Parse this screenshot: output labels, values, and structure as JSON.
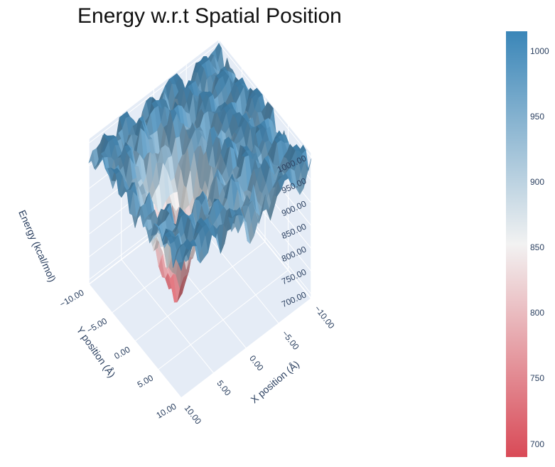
{
  "chart_data": {
    "type": "surface",
    "title": "Energy w.r.t Spatial Position",
    "xlabel": "X position (Å)",
    "ylabel": "Y position (Å)",
    "zlabel": "Energy (kcal/mol)",
    "x_ticks": [
      "−10.00",
      "−5.00",
      "0.00",
      "5.00",
      "10.00"
    ],
    "y_ticks": [
      "−10.00",
      "−5.00",
      "0.00",
      "5.00",
      "10.00"
    ],
    "z_ticks": [
      "700.00",
      "750.00",
      "800.00",
      "850.00",
      "900.00",
      "950.00",
      "1000.00"
    ],
    "xlim": [
      -10,
      10
    ],
    "ylim": [
      -10,
      10
    ],
    "zlim": [
      690,
      1010
    ],
    "colorscale": [
      "#d94a57",
      "#f2f2f2",
      "#3a86b8"
    ],
    "colorbar": {
      "range": [
        690,
        1015
      ],
      "ticks": [
        {
          "value": 700,
          "label": "700"
        },
        {
          "value": 750,
          "label": "750"
        },
        {
          "value": 800,
          "label": "800"
        },
        {
          "value": 850,
          "label": "850"
        },
        {
          "value": 900,
          "label": "900"
        },
        {
          "value": 950,
          "label": "950"
        },
        {
          "value": 1000,
          "label": "1000"
        }
      ]
    },
    "background": "#e5ecf6",
    "grid": true
  }
}
